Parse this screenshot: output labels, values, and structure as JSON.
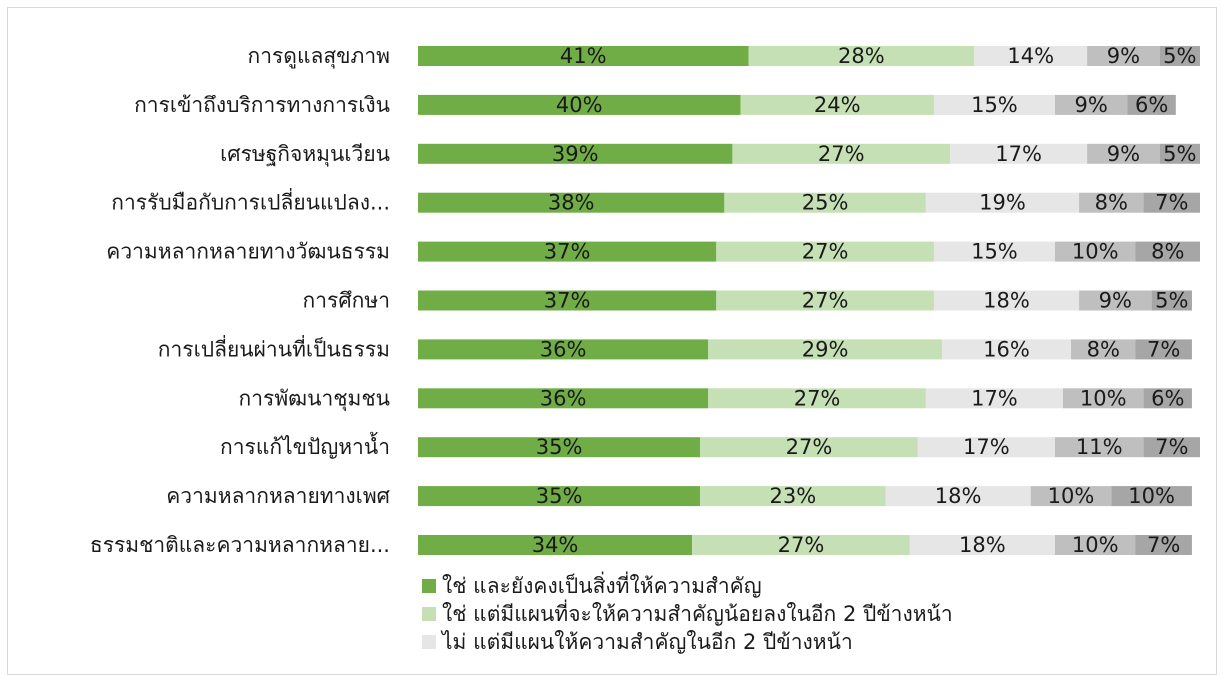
{
  "chart_data": {
    "type": "bar",
    "orientation": "horizontal",
    "stacked": true,
    "categories": [
      "การดูแลสุขภาพ",
      "การเข้าถึงบริการทางการเงิน",
      "เศรษฐกิจหมุนเวียน",
      "การรับมือกับการเปลี่ยนแปลง...",
      "ความหลากหลายทางวัฒนธรรม",
      "การศึกษา",
      "การเปลี่ยนผ่านที่เป็นธรรม",
      "การพัฒนาชุมชน",
      "การแก้ไขปัญหาน้ำ",
      "ความหลากหลายทางเพศ",
      "ธรรมชาติและความหลากหลาย..."
    ],
    "series": [
      {
        "name": "ใช่ และยังคงเป็นสิ่งที่ให้ความสำคัญ",
        "color": "#70ad47",
        "values": [
          41,
          40,
          39,
          38,
          37,
          37,
          36,
          36,
          35,
          35,
          34
        ]
      },
      {
        "name": "ใช่ แต่มีแผนที่จะให้ความสำคัญน้อยลงในอีก 2 ปีข้างหน้า",
        "color": "#c5e0b4",
        "values": [
          28,
          24,
          27,
          25,
          27,
          27,
          29,
          27,
          27,
          23,
          27
        ]
      },
      {
        "name": "ไม่ แต่มีแผนให้ความสำคัญในอีก 2 ปีข้างหน้า",
        "color": "#e7e6e6",
        "values": [
          14,
          15,
          17,
          19,
          15,
          18,
          16,
          17,
          17,
          18,
          18
        ]
      },
      {
        "name": "",
        "color": "#bfbfbf",
        "values": [
          9,
          9,
          9,
          8,
          10,
          9,
          8,
          10,
          11,
          10,
          10
        ]
      },
      {
        "name": "",
        "color": "#a6a6a6",
        "values": [
          5,
          6,
          5,
          7,
          8,
          5,
          7,
          6,
          7,
          10,
          7
        ]
      }
    ],
    "value_suffix": "%",
    "xlim": [
      0,
      97
    ],
    "grid": false,
    "legend_position": "bottom-left"
  }
}
